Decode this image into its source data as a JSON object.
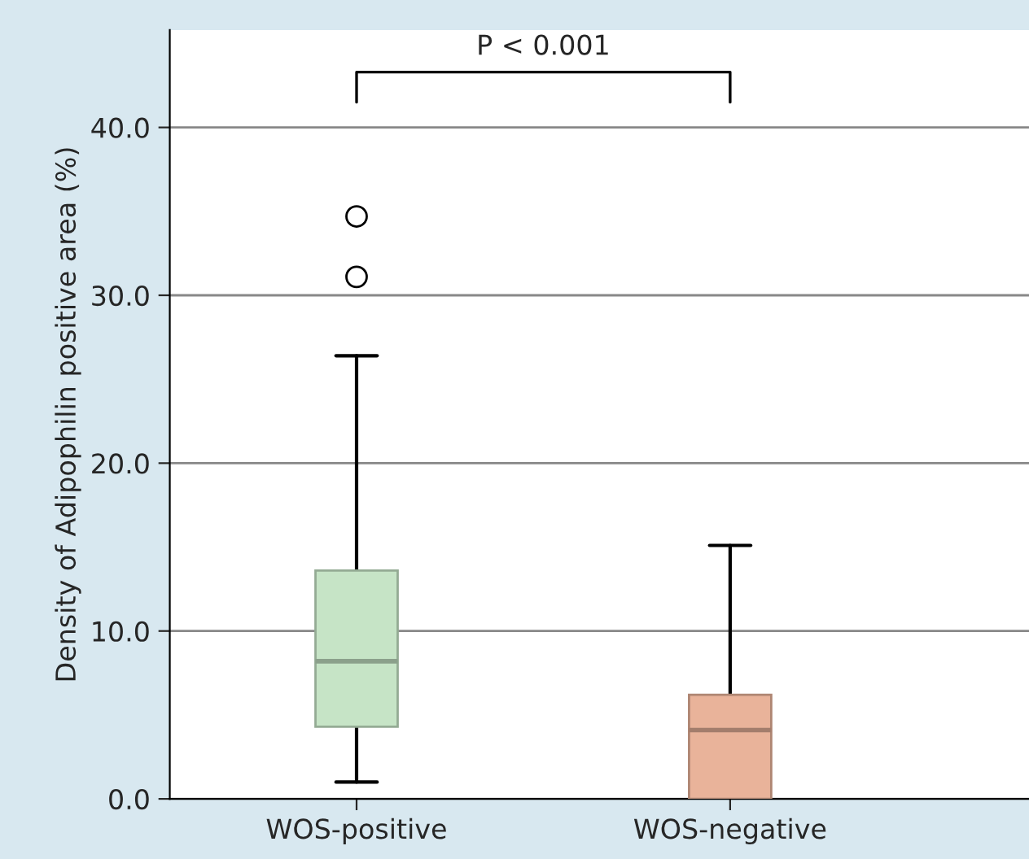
{
  "chart_data": {
    "type": "box",
    "ylabel": "Density of Adipophilin positive area (%)",
    "categories": [
      "WOS-positive",
      "WOS-negative"
    ],
    "boxes": [
      {
        "low": 1.0,
        "q1": 4.3,
        "median": 8.2,
        "q3": 13.6,
        "high": 26.4,
        "outliers": [
          31.1,
          34.7
        ]
      },
      {
        "low": 0.0,
        "q1": 0.0,
        "median": 4.1,
        "q3": 6.2,
        "high": 15.1
      }
    ],
    "colors": [
      "#c6e4c6",
      "#e9b39a"
    ],
    "ylim": [
      0,
      45.8
    ],
    "yticks": [
      {
        "value": 0,
        "label": "0.0"
      },
      {
        "value": 10,
        "label": "10.0"
      },
      {
        "value": 20,
        "label": "20.0"
      },
      {
        "value": 30,
        "label": "30.0"
      },
      {
        "value": 40,
        "label": "40.0"
      }
    ],
    "grid": "y",
    "annotations": [
      "P < 0.001"
    ]
  }
}
